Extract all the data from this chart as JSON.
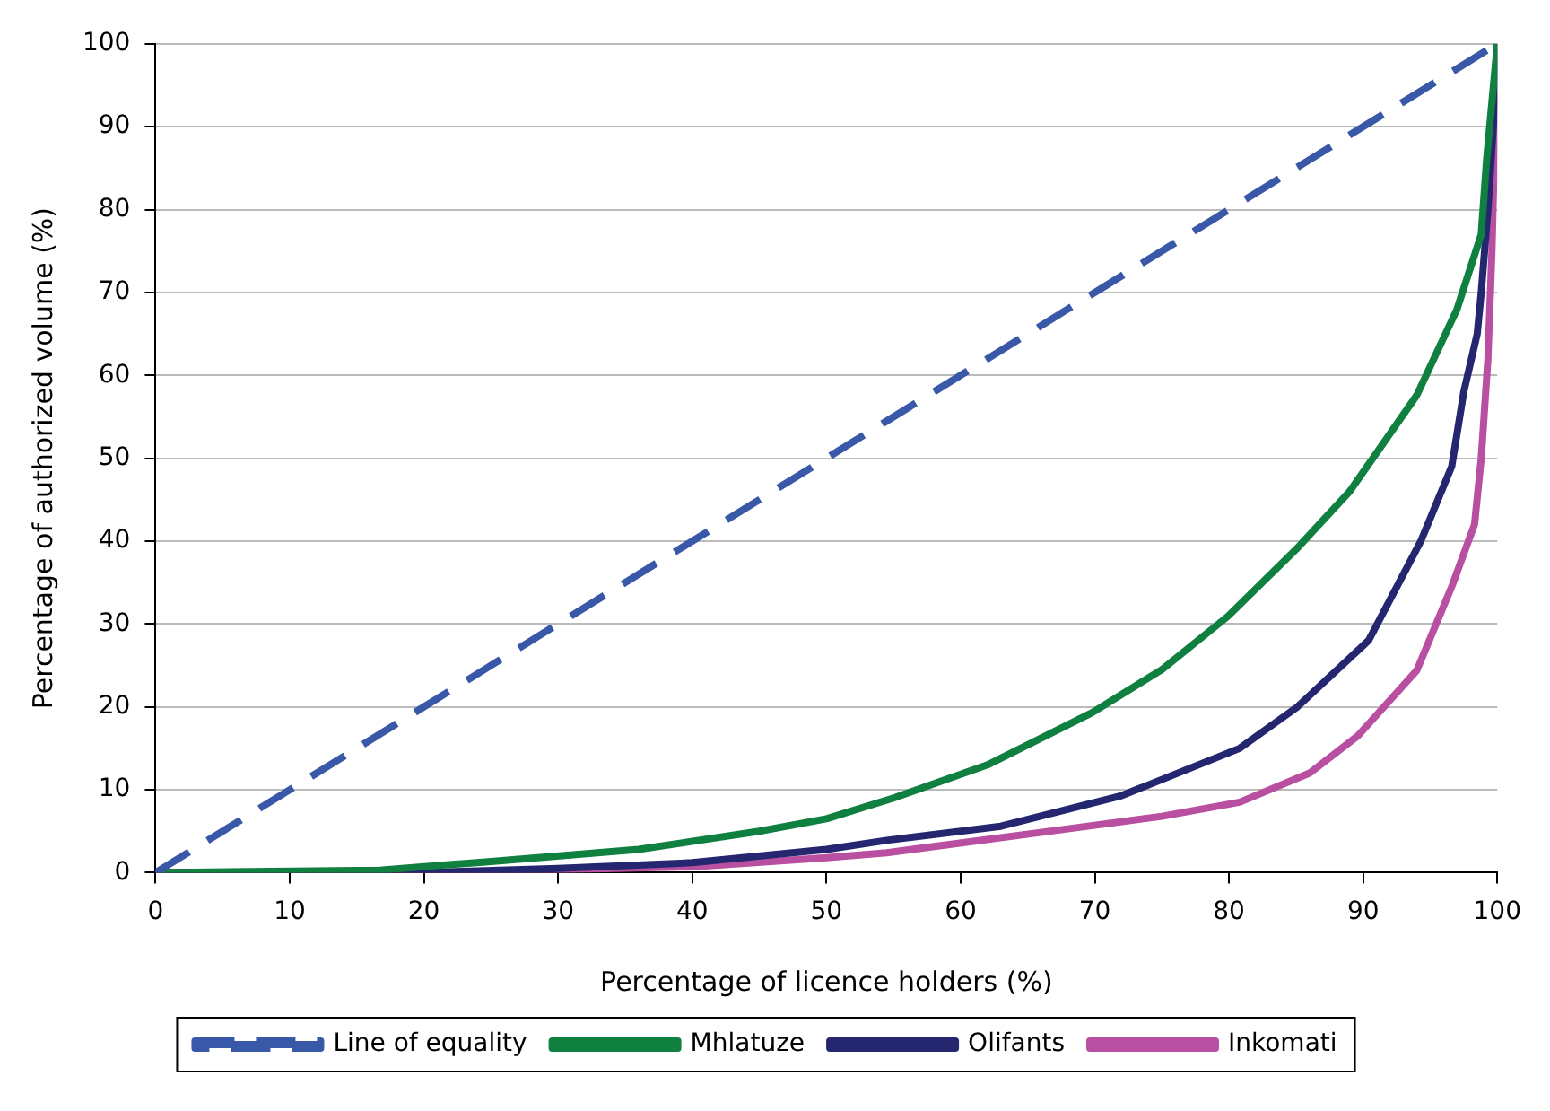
{
  "chart_data": {
    "type": "line",
    "xlabel": "Percentage of licence holders (%)",
    "ylabel": "Percentage of authorized volume (%)",
    "xlim": [
      0,
      100
    ],
    "xticks": [
      0,
      10,
      20,
      30,
      40,
      50,
      60,
      70,
      80,
      90,
      100
    ],
    "ylim": [
      0,
      100
    ],
    "yticks": [
      0,
      10,
      20,
      30,
      40,
      50,
      60,
      70,
      80,
      90,
      100
    ],
    "grid": "y",
    "legend": "bottom",
    "marker": "none",
    "series": [
      {
        "name": "Line of equality",
        "color": "#3a58a8",
        "line_style": "dashed",
        "x": [
          0,
          100
        ],
        "values": [
          0,
          100
        ]
      },
      {
        "name": "Mhlatuze",
        "color": "#108040",
        "line_style": "solid",
        "x": [
          0,
          16.7,
          24.6,
          36,
          45,
          50,
          55,
          62,
          69.8,
          75,
          79.9,
          85,
          89,
          94,
          97,
          98.8,
          99.2,
          100
        ],
        "values": [
          0,
          0.3,
          1.3,
          2.8,
          5,
          6.5,
          9,
          13,
          19.3,
          24.5,
          30.9,
          39,
          46,
          57.6,
          68,
          77,
          86,
          100
        ]
      },
      {
        "name": "Olifants",
        "color": "#252670",
        "line_style": "solid",
        "x": [
          0,
          20,
          30,
          40,
          50,
          54.5,
          63,
          72,
          80.8,
          85.1,
          90.4,
          94.3,
          96.6,
          97.5,
          98.5,
          98.8,
          99.3,
          99.7,
          100
        ],
        "values": [
          0,
          0,
          0.5,
          1.2,
          2.8,
          3.9,
          5.6,
          9.3,
          15,
          20,
          28,
          40,
          49,
          58,
          65,
          70,
          80,
          90,
          100
        ]
      },
      {
        "name": "Inkomati",
        "color": "#b84fa0",
        "line_style": "solid",
        "x": [
          0,
          20,
          40,
          50,
          54.5,
          67.6,
          75,
          80.8,
          86,
          89.6,
          94,
          96.6,
          98.3,
          98.8,
          99.3,
          99.6,
          99.8,
          100
        ],
        "values": [
          0,
          0,
          0.7,
          1.8,
          2.4,
          5.2,
          6.8,
          8.5,
          12,
          16.5,
          24.4,
          34.5,
          42,
          50,
          62,
          75,
          88,
          100
        ]
      }
    ]
  }
}
